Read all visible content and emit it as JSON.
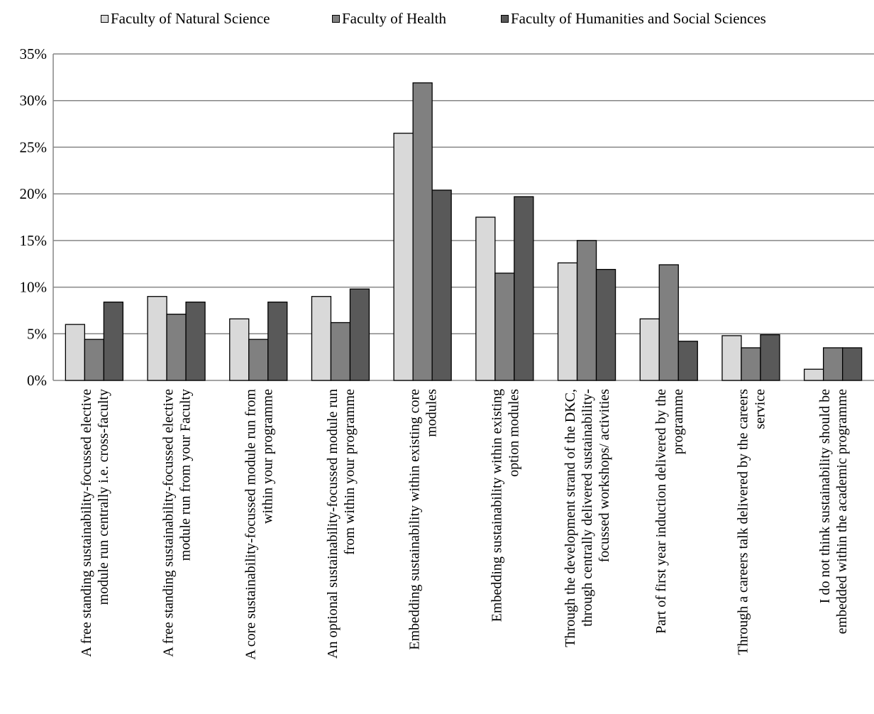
{
  "chart_data": {
    "type": "bar",
    "title": "",
    "xlabel": "",
    "ylabel": "",
    "ylim": [
      0,
      35
    ],
    "yticks": [
      "0%",
      "5%",
      "10%",
      "15%",
      "20%",
      "25%",
      "30%",
      "35%"
    ],
    "grid": true,
    "legend_position": "top",
    "categories": [
      [
        "A free standing sustainability-focussed elective",
        "module run centrally i.e. cross-faculty"
      ],
      [
        "A free standing sustainability-focussed elective",
        "module run from your Faculty"
      ],
      [
        "A core sustainability-focussed module run from",
        "within your programme"
      ],
      [
        "An optional sustainability-focussed module run",
        "from within your programme"
      ],
      [
        "Embedding sustainability within existing core",
        "modules"
      ],
      [
        "Embedding sustainability within existing",
        "option modules"
      ],
      [
        "Through the development strand of the DKC,",
        "through centrally delivered sustainability-",
        "focussed workshops/ activities"
      ],
      [
        "Part of first year induction delivered by the",
        "programme"
      ],
      [
        "Through a careers talk delivered by the careers",
        "service"
      ],
      [
        "I do not think sustainability should be",
        "embedded within the academic programme"
      ]
    ],
    "series": [
      {
        "name": "Faculty of Natural Science",
        "color": "#d9d9d9",
        "values": [
          6.0,
          9.0,
          6.6,
          9.0,
          26.5,
          17.5,
          12.6,
          6.6,
          4.8,
          1.2
        ]
      },
      {
        "name": "Faculty of Health",
        "color": "#808080",
        "values": [
          4.4,
          7.1,
          4.4,
          6.2,
          31.9,
          11.5,
          15.0,
          12.4,
          3.5,
          3.5
        ]
      },
      {
        "name": "Faculty of Humanities and Social Sciences",
        "color": "#595959",
        "values": [
          8.4,
          8.4,
          8.4,
          9.8,
          20.4,
          19.7,
          11.9,
          4.2,
          4.9,
          3.5
        ]
      }
    ]
  }
}
